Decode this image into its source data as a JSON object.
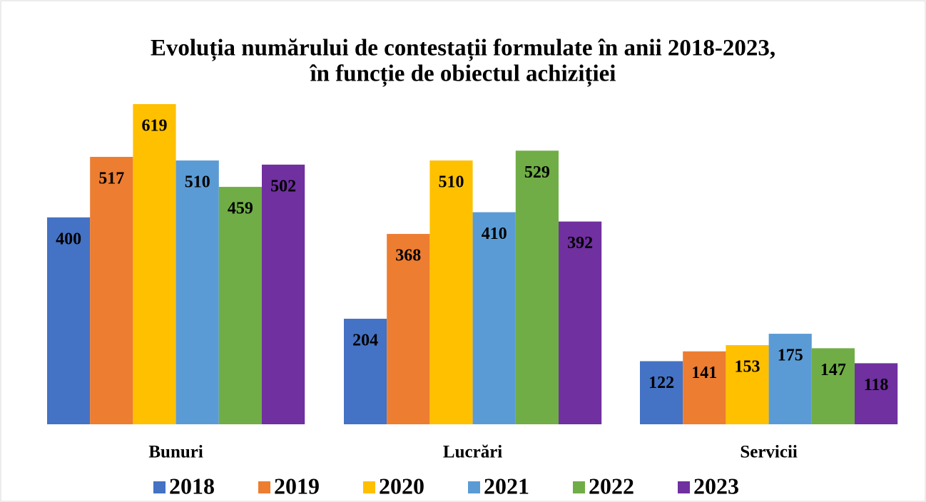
{
  "chart_data": {
    "type": "bar",
    "title": [
      "Evoluția numărului de contestații formulate în anii 2018-2023,",
      "în funcție de obiectul achiziției"
    ],
    "categories": [
      "Bunuri",
      "Lucrări",
      "Servicii"
    ],
    "series": [
      {
        "name": "2018",
        "color": "#4472c4",
        "values": [
          400,
          204,
          122
        ]
      },
      {
        "name": "2019",
        "color": "#ed7d31",
        "values": [
          517,
          368,
          141
        ]
      },
      {
        "name": "2020",
        "color": "#ffc000",
        "values": [
          619,
          510,
          153
        ]
      },
      {
        "name": "2021",
        "color": "#5b9bd5",
        "values": [
          510,
          410,
          175
        ]
      },
      {
        "name": "2022",
        "color": "#70ad47",
        "values": [
          459,
          529,
          147
        ]
      },
      {
        "name": "2023",
        "color": "#7030a0",
        "values": [
          502,
          392,
          118
        ]
      }
    ],
    "legend": "bottom"
  }
}
